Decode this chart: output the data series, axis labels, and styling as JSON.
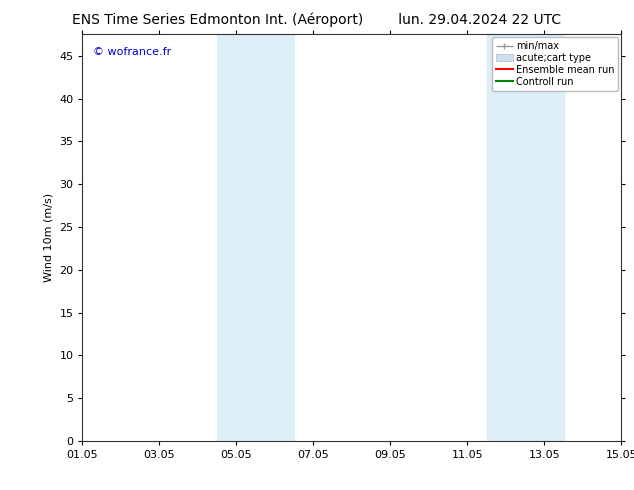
{
  "title_left": "ENS Time Series Edmonton Int. (Aéroport)",
  "title_right": "lun. 29.04.2024 22 UTC",
  "ylabel": "Wind 10m (m/s)",
  "watermark": "© wofrance.fr",
  "xtick_labels": [
    "01.05",
    "03.05",
    "05.05",
    "07.05",
    "09.05",
    "11.05",
    "13.05",
    "15.05"
  ],
  "xtick_positions": [
    0,
    2,
    4,
    6,
    8,
    10,
    12,
    14
  ],
  "xlim": [
    0,
    14
  ],
  "ylim": [
    0,
    47.5
  ],
  "ytick_positions": [
    0,
    5,
    10,
    15,
    20,
    25,
    30,
    35,
    40,
    45
  ],
  "ytick_labels": [
    "0",
    "5",
    "10",
    "15",
    "20",
    "25",
    "30",
    "35",
    "40",
    "45"
  ],
  "shaded_bands": [
    {
      "x_start": 3.5,
      "x_end": 4.0
    },
    {
      "x_start": 4.0,
      "x_end": 5.5
    },
    {
      "x_start": 10.5,
      "x_end": 11.0
    },
    {
      "x_start": 11.0,
      "x_end": 12.5
    }
  ],
  "shaded_color": "#ddeef8",
  "bg_color": "#ffffff",
  "plot_bg_color": "#ffffff",
  "legend_entries": [
    {
      "label": "min/max"
    },
    {
      "label": "acute;cart type"
    },
    {
      "label": "Ensemble mean run"
    },
    {
      "label": "Controll run"
    }
  ],
  "legend_colors": [
    "#aaaaaa",
    "#cce0ee",
    "#ff0000",
    "#008000"
  ],
  "title_fontsize": 10,
  "axis_fontsize": 8,
  "tick_fontsize": 8,
  "watermark_color": "#0000cc",
  "watermark_fontsize": 8
}
